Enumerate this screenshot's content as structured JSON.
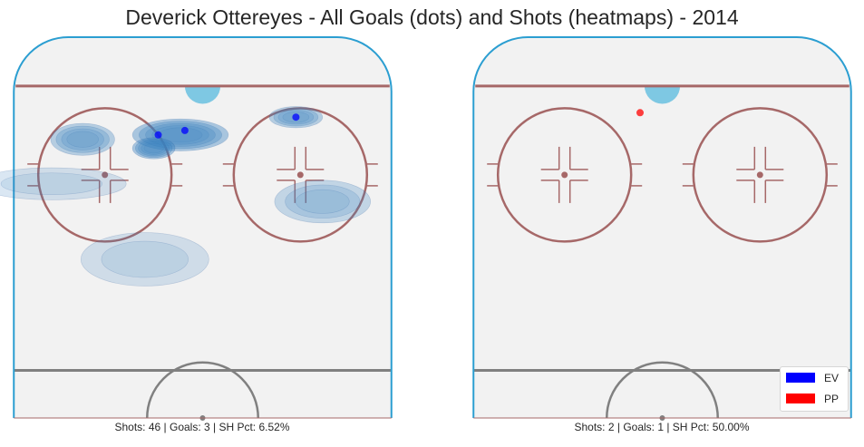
{
  "title": "Deverick Ottereyes - All Goals (dots) and Shots (heatmaps) - 2014",
  "colors": {
    "ice": "#f2f2f2",
    "boards": "#2b9ed1",
    "red_line": "#a66868",
    "blue_line": "#808080",
    "crease": "#7ec8e3",
    "heat": "#3a82c0",
    "ev": "#0000ff",
    "pp": "#ff0000"
  },
  "legend": {
    "items": [
      {
        "label": "EV",
        "color": "#0000ff"
      },
      {
        "label": "PP",
        "color": "#ff0000"
      }
    ]
  },
  "chart_data": [
    {
      "type": "heatmap",
      "panel": "left",
      "caption": "Shots: 46 | Goals: 3 | SH Pct: 6.52%",
      "stats": {
        "shots": 46,
        "goals": 3,
        "sh_pct": 6.52
      },
      "goals": [
        {
          "x": -10,
          "y": 78,
          "strength": "EV"
        },
        {
          "x": 21,
          "y": 82,
          "strength": "EV"
        },
        {
          "x": -4,
          "y": 79,
          "strength": "EV"
        }
      ],
      "shot_density": [
        {
          "x": -5,
          "y": 78,
          "sx": 9,
          "sy": 3,
          "level": 4
        },
        {
          "x": -11,
          "y": 75,
          "sx": 4,
          "sy": 2,
          "level": 4
        },
        {
          "x": 21,
          "y": 82,
          "sx": 5,
          "sy": 2,
          "level": 3
        },
        {
          "x": -27,
          "y": 77,
          "sx": 6,
          "sy": 3,
          "level": 3
        },
        {
          "x": 27,
          "y": 63,
          "sx": 9,
          "sy": 4,
          "level": 2
        },
        {
          "x": -13,
          "y": 50,
          "sx": 12,
          "sy": 5,
          "level": 1
        },
        {
          "x": -34,
          "y": 67,
          "sx": 14,
          "sy": 3,
          "level": 1
        }
      ]
    },
    {
      "type": "heatmap",
      "panel": "right",
      "caption": "Shots: 2 | Goals: 1 | SH Pct: 50.00%",
      "stats": {
        "shots": 2,
        "goals": 1,
        "sh_pct": 50.0
      },
      "goals": [
        {
          "x": -5,
          "y": 83,
          "strength": "PP"
        }
      ],
      "shot_density": []
    }
  ]
}
